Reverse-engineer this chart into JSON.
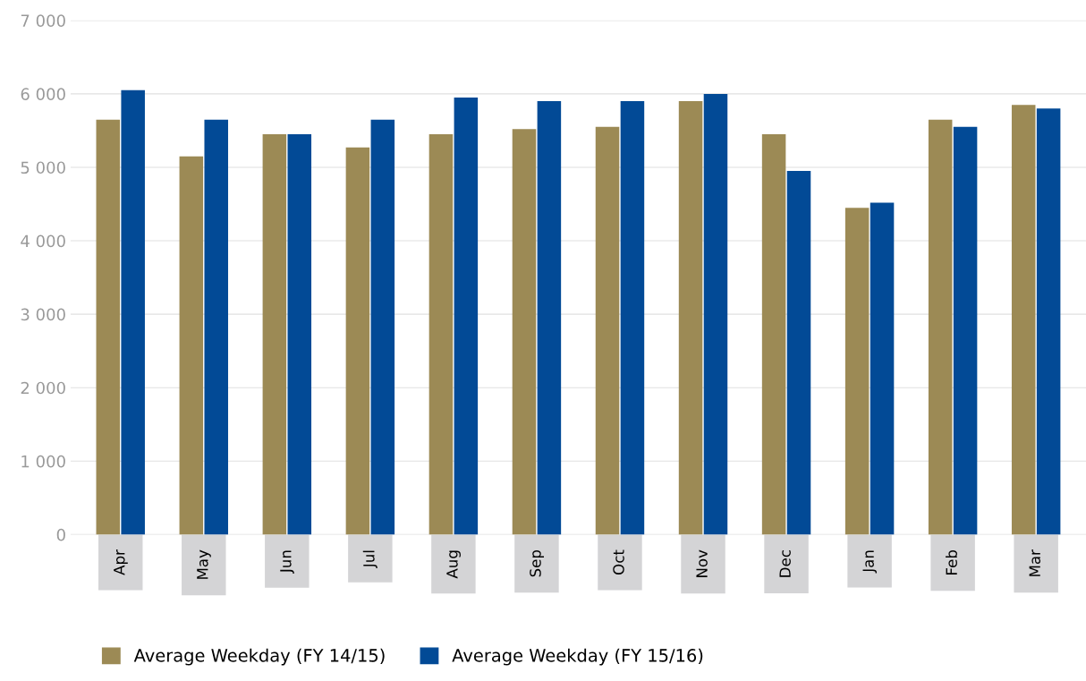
{
  "chart_data": {
    "type": "bar",
    "categories": [
      "Apr",
      "May",
      "Jun",
      "Jul",
      "Aug",
      "Sep",
      "Oct",
      "Nov",
      "Dec",
      "Jan",
      "Feb",
      "Mar"
    ],
    "series": [
      {
        "name": "Average Weekday (FY 14/15)",
        "color": "#9c8a55",
        "values": [
          5650,
          5150,
          5450,
          5270,
          5450,
          5520,
          5550,
          5900,
          5450,
          4450,
          5650,
          5850
        ]
      },
      {
        "name": "Average Weekday (FY 15/16)",
        "color": "#024a96",
        "values": [
          6050,
          5650,
          5450,
          5650,
          5950,
          5900,
          5900,
          6000,
          4950,
          4520,
          5550,
          5800
        ]
      }
    ],
    "ylim": [
      0,
      7000
    ],
    "yticks": [
      {
        "value": 0,
        "label": "0"
      },
      {
        "value": 1000,
        "label": "1 000"
      },
      {
        "value": 2000,
        "label": "2 000"
      },
      {
        "value": 3000,
        "label": "3 000"
      },
      {
        "value": 4000,
        "label": "4 000"
      },
      {
        "value": 5000,
        "label": "5 000"
      },
      {
        "value": 6000,
        "label": "6 000"
      },
      {
        "value": 7000,
        "label": "7 000"
      }
    ],
    "grid": "y",
    "legend": "bottom left"
  }
}
